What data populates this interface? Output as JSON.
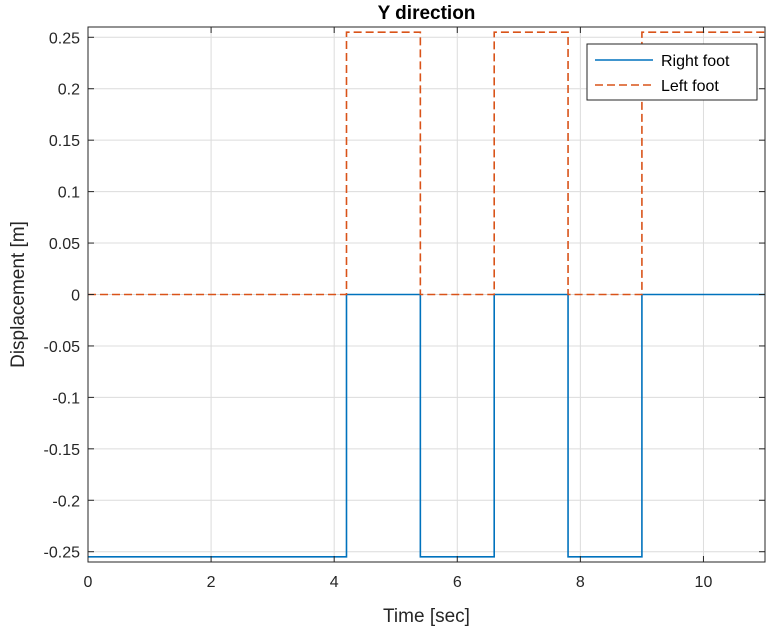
{
  "chart_data": {
    "type": "line",
    "title": "Y direction",
    "xlabel": "Time [sec]",
    "ylabel": "Displacement [m]",
    "xlim": [
      0,
      11
    ],
    "ylim": [
      -0.26,
      0.26
    ],
    "xticks": [
      0,
      2,
      4,
      6,
      8,
      10
    ],
    "xtick_labels": [
      "0",
      "2",
      "4",
      "6",
      "8",
      "10"
    ],
    "yticks": [
      0.25,
      0.2,
      0.15,
      0.1,
      0.05,
      0,
      -0.05,
      -0.1,
      -0.15,
      -0.2,
      -0.25
    ],
    "ytick_labels": [
      "0.25",
      "0.2",
      "0.15",
      "0.1",
      "0.05",
      "0",
      "-0.05",
      "-0.1",
      "-0.15",
      "-0.2",
      "-0.25"
    ],
    "grid": true,
    "legend_position": "top-right",
    "series": [
      {
        "name": "Right foot",
        "color": "#0072BD",
        "style": "solid",
        "x": [
          0,
          4.2,
          4.2,
          5.4,
          5.4,
          6.6,
          6.6,
          7.8,
          7.8,
          9.0,
          9.0,
          11
        ],
        "y": [
          -0.255,
          -0.255,
          0,
          0,
          -0.255,
          -0.255,
          0,
          0,
          -0.255,
          -0.255,
          0,
          0
        ]
      },
      {
        "name": "Left foot",
        "color": "#D95319",
        "style": "dashed",
        "x": [
          0,
          4.2,
          4.2,
          5.4,
          5.4,
          6.6,
          6.6,
          7.8,
          7.8,
          9.0,
          9.0,
          11
        ],
        "y": [
          0,
          0,
          0.255,
          0.255,
          0,
          0,
          0.255,
          0.255,
          0,
          0,
          0.255,
          0.255
        ]
      }
    ]
  }
}
